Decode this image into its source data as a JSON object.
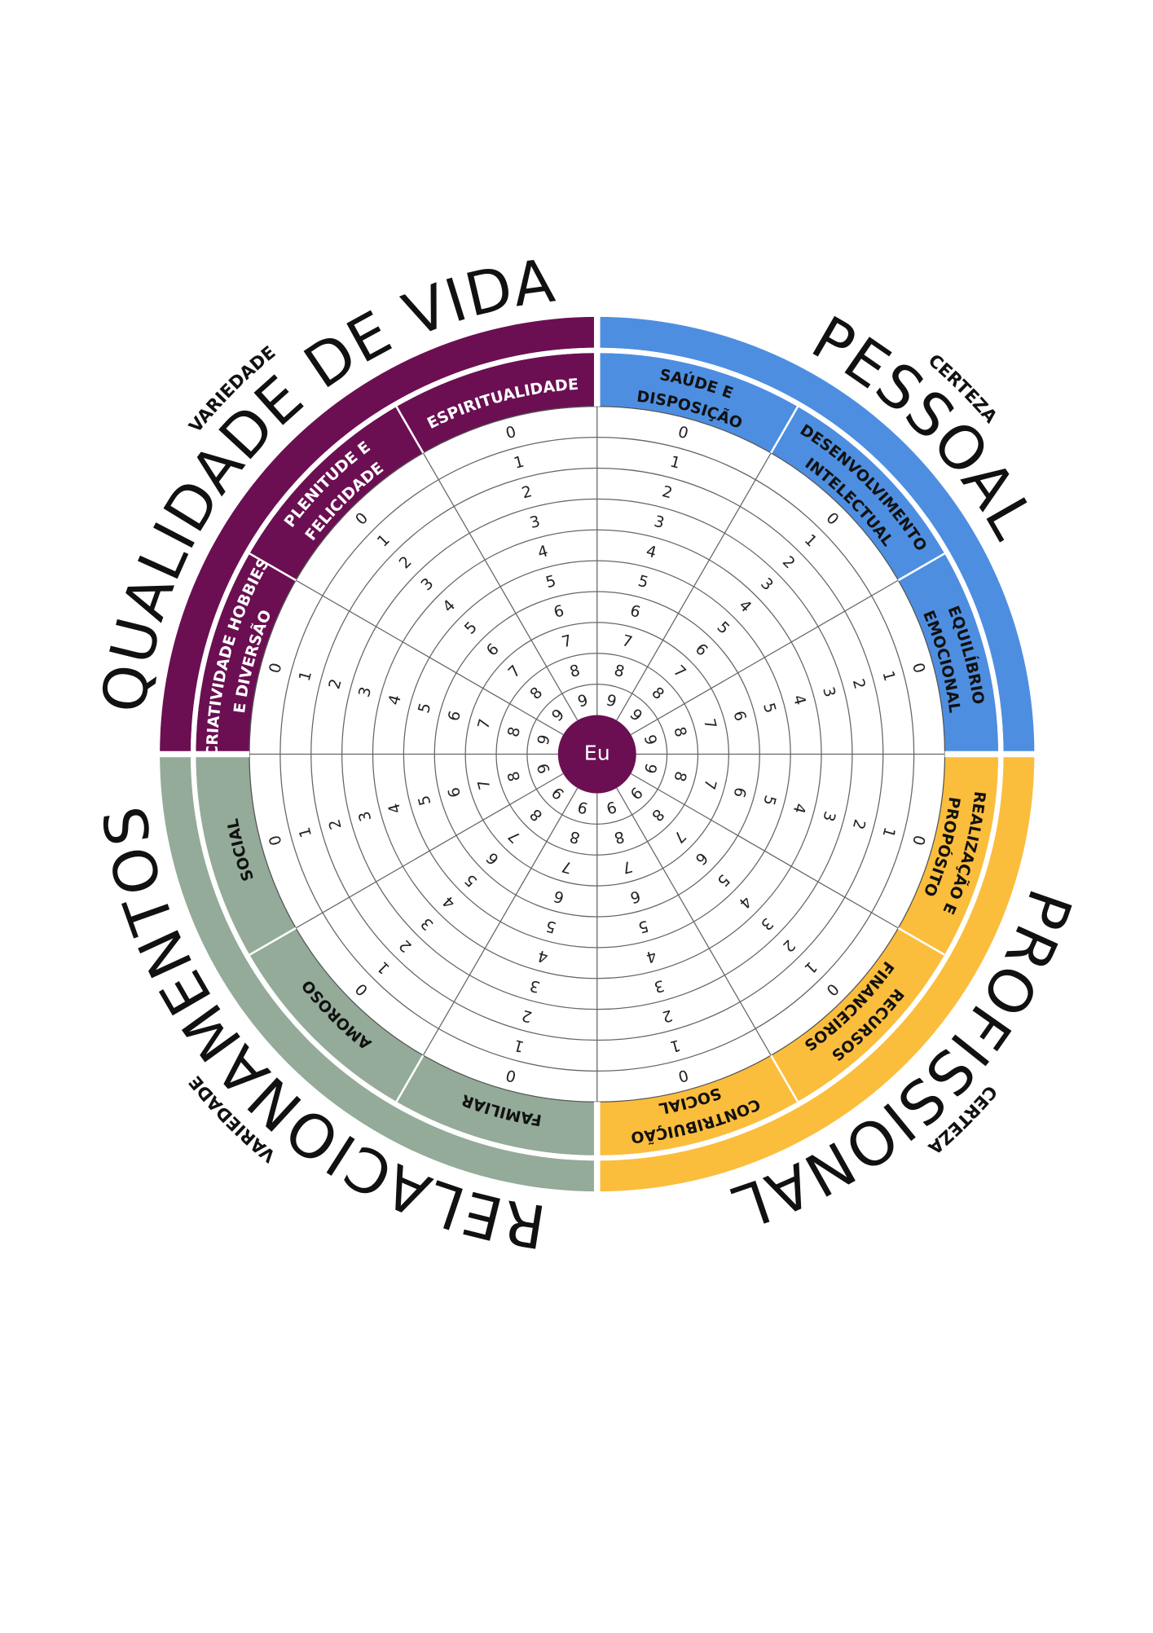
{
  "center": "Eu",
  "scale": [
    0,
    1,
    2,
    3,
    4,
    5,
    6,
    7,
    8,
    9
  ],
  "groups": [
    {
      "title": "PESSOAL",
      "color": "#4d8ee0",
      "text_color": "#111111",
      "side_label": "CERTEZA",
      "categories": [
        {
          "lines": [
            "SAÚDE E",
            "DISPOSIÇÃO"
          ]
        },
        {
          "lines": [
            "DESENVOLVIMENTO",
            "INTELECTUAL"
          ]
        },
        {
          "lines": [
            "EQUILÍBRIO",
            "EMOCIONAL"
          ]
        }
      ]
    },
    {
      "title": "PROFISSIONAL",
      "color": "#fbbd3c",
      "text_color": "#111111",
      "side_label": "CERTEZA",
      "categories": [
        {
          "lines": [
            "REALIZAÇÃO E",
            "PROPÓSITO"
          ]
        },
        {
          "lines": [
            "RECURSOS",
            "FINANCEIROS"
          ]
        },
        {
          "lines": [
            "CONTRIBUIÇÃO",
            "SOCIAL"
          ]
        }
      ]
    },
    {
      "title": "RELACIONAMENTOS",
      "color": "#93ab98",
      "text_color": "#111111",
      "side_label": "VARIEDADE",
      "categories": [
        {
          "lines": [
            "FAMILIAR"
          ]
        },
        {
          "lines": [
            "AMOROSO"
          ]
        },
        {
          "lines": [
            "SOCIAL"
          ]
        }
      ]
    },
    {
      "title": "QUALIDADE DE VIDA",
      "color": "#6b0f52",
      "text_color": "#ffffff",
      "side_label": "VARIEDADE",
      "categories": [
        {
          "lines": [
            "CRIATIVIDADE HOBBIES",
            "E DIVERSÃO"
          ]
        },
        {
          "lines": [
            "PLENITUDE E",
            "FELICIDADE"
          ]
        },
        {
          "lines": [
            "ESPIRITUALIDADE"
          ]
        }
      ]
    }
  ]
}
